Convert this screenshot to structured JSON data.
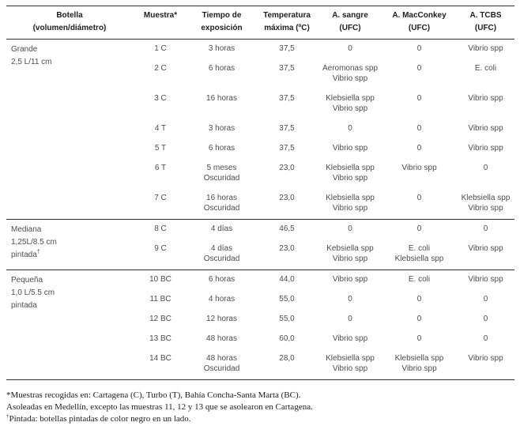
{
  "colors": {
    "background": "#ffffff",
    "rule": "#2e2e2e",
    "header_text": "#1e1e1e",
    "body_text": "#4c4c4c",
    "footnote_text": "#1c1c1c"
  },
  "table": {
    "headers": [
      {
        "lines": [
          "Botella",
          "(volumen/diámetro)"
        ]
      },
      {
        "lines": [
          "Muestra*"
        ]
      },
      {
        "lines": [
          "Tiempo de",
          "exposición"
        ]
      },
      {
        "lines": [
          "Temperatura",
          "máxima (ºC)"
        ]
      },
      {
        "lines": [
          "A. sangre",
          "(UFC)"
        ]
      },
      {
        "lines": [
          "A. MacConkey",
          "(UFC)"
        ]
      },
      {
        "lines": [
          "A. TCBS",
          "(UFC)"
        ]
      }
    ],
    "sections": [
      {
        "bottle": [
          "Grande",
          "2,5 L/11 cm"
        ],
        "rows": [
          {
            "muestra": "1 C",
            "tiempo": [
              "3 horas"
            ],
            "temperatura": "37,5",
            "sangre": [
              "0"
            ],
            "macconkey": [
              "0"
            ],
            "tcbs": [
              "Vibrio spp"
            ]
          },
          {
            "muestra": "2 C",
            "tiempo": [
              "6 horas"
            ],
            "temperatura": "37,5",
            "sangre": [
              "Aeromonas spp",
              "Vibrio spp"
            ],
            "macconkey": [
              "0"
            ],
            "tcbs": [
              "E. coli"
            ]
          },
          {
            "muestra": "3 C",
            "tiempo": [
              "16 horas"
            ],
            "temperatura": "37,5",
            "sangre": [
              "Klebsiella spp",
              "Vibrio spp"
            ],
            "macconkey": [
              "0"
            ],
            "tcbs": [
              "Vibrio spp"
            ]
          },
          {
            "muestra": "4 T",
            "tiempo": [
              "3 horas"
            ],
            "temperatura": "37,5",
            "sangre": [
              "0"
            ],
            "macconkey": [
              "0"
            ],
            "tcbs": [
              "Vibrio spp"
            ]
          },
          {
            "muestra": "5 T",
            "tiempo": [
              "6 horas"
            ],
            "temperatura": "37,5",
            "sangre": [
              "Vibrio spp"
            ],
            "macconkey": [
              "0"
            ],
            "tcbs": [
              "Vibrio spp"
            ]
          },
          {
            "muestra": "6 T",
            "tiempo": [
              "5 meses",
              "Oscuridad"
            ],
            "temperatura": "23,0",
            "sangre": [
              "Klebsiella spp",
              "Vibrio spp"
            ],
            "macconkey": [
              "Vibrio spp"
            ],
            "tcbs": [
              "0"
            ]
          },
          {
            "muestra": "7 C",
            "tiempo": [
              "16 horas",
              "Oscuridad"
            ],
            "temperatura": "23,0",
            "sangre": [
              "Klebsiella spp",
              "Vibrio spp"
            ],
            "macconkey": [
              "0"
            ],
            "tcbs": [
              "Klebsiella spp",
              "Vibrio spp"
            ]
          }
        ]
      },
      {
        "bottle": [
          "Mediana",
          "1,25L/8.5 cm",
          "pintada†"
        ],
        "rows": [
          {
            "muestra": "8 C",
            "tiempo": [
              "4 días"
            ],
            "temperatura": "46,5",
            "sangre": [
              "0"
            ],
            "macconkey": [
              "0"
            ],
            "tcbs": [
              "0"
            ]
          },
          {
            "muestra": "9 C",
            "tiempo": [
              "4 días",
              "Oscuridad"
            ],
            "temperatura": "23,0",
            "sangre": [
              "Kebsiella spp",
              "Vibrio spp"
            ],
            "macconkey": [
              "E. coli",
              "Klebsiella spp"
            ],
            "tcbs": [
              "Vibrio spp"
            ]
          }
        ]
      },
      {
        "bottle": [
          "Pequeña",
          "1,0 L/5.5 cm",
          "pintada"
        ],
        "rows": [
          {
            "muestra": "10 BC",
            "tiempo": [
              "6 horas"
            ],
            "temperatura": "44,0",
            "sangre": [
              "Vibrio spp"
            ],
            "macconkey": [
              "E. coli"
            ],
            "tcbs": [
              "Vibrio spp"
            ]
          },
          {
            "muestra": "11 BC",
            "tiempo": [
              "4 horas"
            ],
            "temperatura": "55,0",
            "sangre": [
              "0"
            ],
            "macconkey": [
              "0"
            ],
            "tcbs": [
              "0"
            ]
          },
          {
            "muestra": "12 BC",
            "tiempo": [
              "12 horas"
            ],
            "temperatura": "55,0",
            "sangre": [
              "0"
            ],
            "macconkey": [
              "0"
            ],
            "tcbs": [
              "0"
            ]
          },
          {
            "muestra": "13 BC",
            "tiempo": [
              "48 horas"
            ],
            "temperatura": "60,0",
            "sangre": [
              "Vibrio spp"
            ],
            "macconkey": [
              "0"
            ],
            "tcbs": [
              "0"
            ]
          },
          {
            "muestra": "14 BC",
            "tiempo": [
              "48 horas",
              "Oscuridad"
            ],
            "temperatura": "28,0",
            "sangre": [
              "Klebsiella spp",
              "Vibrio spp"
            ],
            "macconkey": [
              "Klebsiella spp",
              "Vibrio spp"
            ],
            "tcbs": [
              "Vibrio spp"
            ]
          }
        ]
      }
    ]
  },
  "footnotes": [
    "*Muestras recogidas en: Cartagena (C), Turbo (T), Bahía Concha-Santa Marta (BC).",
    "Asoleadas en Medellín, excepto las muestras 11, 12 y 13 que se asolearon en Cartagena.",
    "†Pintada: botellas pintadas de color negro en un lado."
  ]
}
